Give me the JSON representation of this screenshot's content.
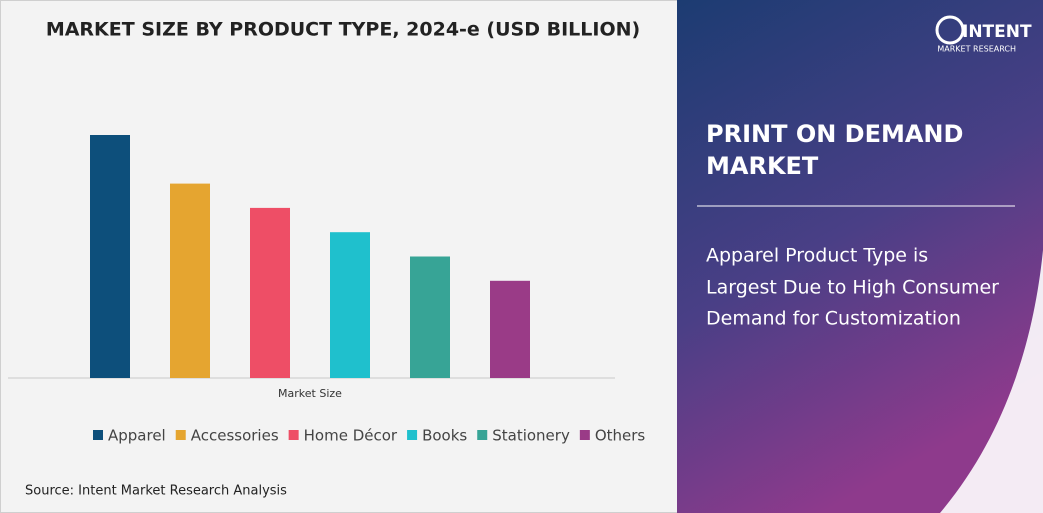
{
  "chart_data": {
    "type": "bar",
    "title": "MARKET SIZE BY PRODUCT TYPE, 2024-e (USD BILLION)",
    "x_label": "Market Size",
    "categories": [
      "Apparel",
      "Accessories",
      "Home Décor",
      "Books",
      "Stationery",
      "Others"
    ],
    "values": [
      100,
      80,
      70,
      60,
      50,
      40
    ],
    "colors": [
      "#0d4f7b",
      "#e5a530",
      "#ee4e66",
      "#1fc0cd",
      "#37a496",
      "#9a3b87"
    ]
  },
  "source": "Source: Intent Market Research Analysis",
  "logo": {
    "name": "INTENT",
    "subtitle": "MARKET RESEARCH"
  },
  "side_panel": {
    "heading_lines": [
      "PRINT ON DEMAND",
      "MARKET"
    ],
    "text_lines": [
      "Apparel Product Type is",
      "Largest Due to High Consumer",
      "Demand for Customization"
    ]
  }
}
